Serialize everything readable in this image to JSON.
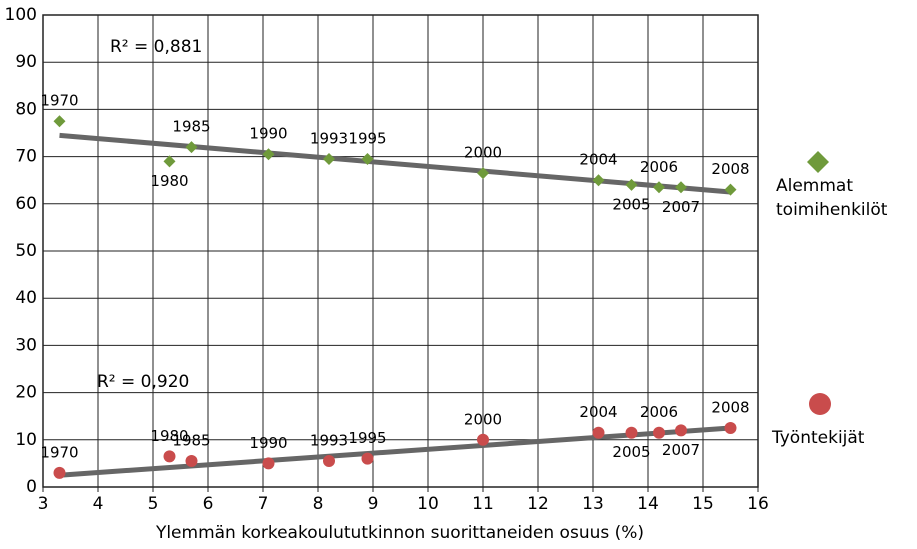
{
  "chart_data": {
    "type": "scatter",
    "x_label": "Ylemmän korkeakoulututkinnon suorittaneiden osuus (%)",
    "xlim": [
      3,
      16
    ],
    "xticks": [
      3,
      4,
      5,
      6,
      7,
      8,
      9,
      10,
      11,
      12,
      13,
      14,
      15,
      16
    ],
    "ylim": [
      0,
      100
    ],
    "yticks": [
      0,
      10,
      20,
      30,
      40,
      50,
      60,
      70,
      80,
      90,
      100
    ],
    "grid": true,
    "legend": "right",
    "series": [
      {
        "name": "Alemmat toimihenkilöt",
        "color": "#6f9a3b",
        "marker": "diamond",
        "x": [
          3.3,
          5.3,
          5.7,
          7.1,
          8.2,
          8.9,
          11,
          13.1,
          13.7,
          14.2,
          14.6,
          15.5
        ],
        "values": [
          77.5,
          69,
          72,
          70.5,
          69.5,
          69.5,
          66.5,
          65,
          64,
          63.5,
          63.5,
          63
        ],
        "labels": [
          "1970",
          "1980",
          "1985",
          "1990",
          "1993",
          "1995",
          "2000",
          "2004",
          "2005",
          "2006",
          "2007",
          "2008"
        ],
        "trendline": {
          "x": [
            3.3,
            15.5
          ],
          "values": [
            74.5,
            62.5
          ]
        },
        "r2_label": "R² = 0,881"
      },
      {
        "name": "Työntekijät",
        "color": "#c94c4c",
        "marker": "circle",
        "x": [
          3.3,
          5.3,
          5.7,
          7.1,
          8.2,
          8.9,
          11,
          13.1,
          13.7,
          14.2,
          14.6,
          15.5
        ],
        "values": [
          3,
          6.5,
          5.5,
          5,
          5.5,
          6,
          10,
          11.5,
          11.5,
          11.5,
          12,
          12.5
        ],
        "labels": [
          "1970",
          "1980",
          "1985",
          "1990",
          "1993",
          "1995",
          "2000",
          "2004",
          "2005",
          "2006",
          "2007",
          "2008"
        ],
        "trendline": {
          "x": [
            3.3,
            15.5
          ],
          "values": [
            2.5,
            12.5
          ]
        },
        "r2_label": "R² = 0,920"
      }
    ]
  }
}
